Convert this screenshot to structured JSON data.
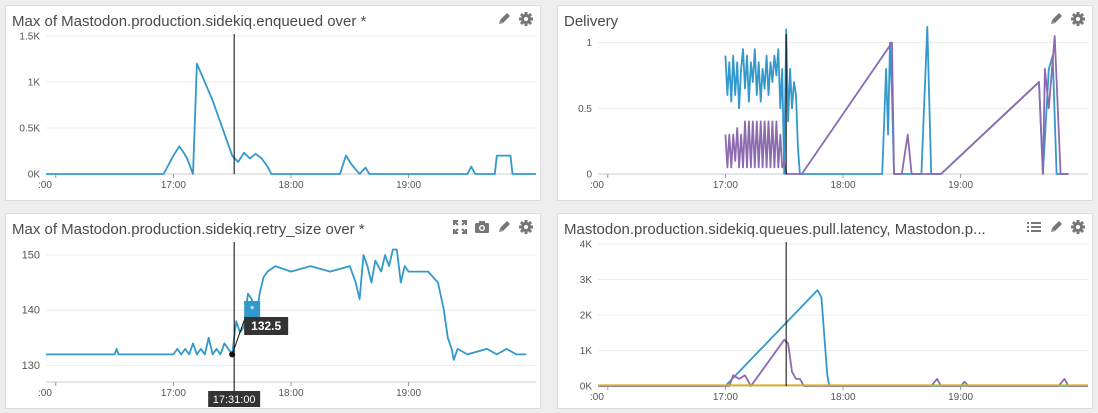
{
  "colors": {
    "blue": "#3399cc",
    "purple": "#8c6bb1",
    "gold": "#d4b21f",
    "grid": "#ececec",
    "cursor": "#000000"
  },
  "panels": [
    {
      "title": "Max of Mastodon.production.sidekiq.enqueued over *",
      "icons": [
        "pencil-icon",
        "gear-icon"
      ]
    },
    {
      "title": "Delivery",
      "icons": [
        "pencil-icon",
        "gear-icon"
      ]
    },
    {
      "title": "Max of Mastodon.production.sidekiq.retry_size over *",
      "icons": [
        "expand-icon",
        "camera-icon",
        "pencil-icon",
        "gear-icon"
      ],
      "tooltip": {
        "series_marker": "*",
        "value": "132.5",
        "time": "17:31:00"
      }
    },
    {
      "title": "Mastodon.production.sidekiq.queues.pull.latency, Mastodon.p...",
      "icons": [
        "list-icon",
        "pencil-icon",
        "gear-icon"
      ]
    }
  ],
  "chart_data": [
    {
      "type": "line",
      "x_ticks": [
        "16:00",
        "17:00",
        "18:00",
        "19:00"
      ],
      "x_tick_labels": [
        ":00",
        "17:00",
        "18:00",
        "19:00"
      ],
      "ylim": [
        0,
        1500
      ],
      "y_ticks": [
        0,
        500,
        1000,
        1500
      ],
      "y_tick_labels": [
        "0K",
        "0.5K",
        "1K",
        "1.5K"
      ],
      "grid": true,
      "cursor_time": "17:31",
      "series": [
        {
          "color": "blue",
          "points": [
            [
              "15:55",
              0
            ],
            [
              "16:55",
              0
            ],
            [
              "17:00",
              200
            ],
            [
              "17:03",
              300
            ],
            [
              "17:05",
              240
            ],
            [
              "17:07",
              170
            ],
            [
              "17:10",
              0
            ],
            [
              "17:12",
              1200
            ],
            [
              "17:15",
              1050
            ],
            [
              "17:20",
              800
            ],
            [
              "17:30",
              200
            ],
            [
              "17:33",
              130
            ],
            [
              "17:36",
              230
            ],
            [
              "17:39",
              170
            ],
            [
              "17:42",
              220
            ],
            [
              "17:45",
              170
            ],
            [
              "17:48",
              80
            ],
            [
              "17:50",
              0
            ],
            [
              "18:25",
              0
            ],
            [
              "18:28",
              200
            ],
            [
              "18:31",
              100
            ],
            [
              "18:35",
              0
            ],
            [
              "18:38",
              70
            ],
            [
              "18:40",
              0
            ],
            [
              "19:30",
              0
            ],
            [
              "19:32",
              80
            ],
            [
              "19:34",
              0
            ],
            [
              "19:44",
              0
            ],
            [
              "19:45",
              200
            ],
            [
              "19:52",
              200
            ],
            [
              "19:53",
              0
            ],
            [
              "20:05",
              0
            ]
          ]
        }
      ]
    },
    {
      "type": "line",
      "x_ticks": [
        "16:00",
        "17:00",
        "18:00",
        "19:00"
      ],
      "x_tick_labels": [
        ":00",
        "17:00",
        "18:00",
        "19:00"
      ],
      "ylim": [
        0,
        1.05
      ],
      "y_ticks": [
        0,
        0.5,
        1
      ],
      "y_tick_labels": [
        "0",
        "0.5",
        "1"
      ],
      "grid": true,
      "cursor_time": "17:31",
      "series": [
        {
          "color": "blue",
          "points": [
            [
              "17:00",
              0.9
            ],
            [
              "17:01",
              0.6
            ],
            [
              "17:02",
              0.85
            ],
            [
              "17:03",
              0.55
            ],
            [
              "17:04",
              0.9
            ],
            [
              "17:05",
              0.6
            ],
            [
              "17:06",
              0.85
            ],
            [
              "17:07",
              0.5
            ],
            [
              "17:08",
              0.8
            ],
            [
              "17:09",
              0.95
            ],
            [
              "17:10",
              0.65
            ],
            [
              "17:11",
              0.9
            ],
            [
              "17:12",
              0.55
            ],
            [
              "17:13",
              0.85
            ],
            [
              "17:14",
              0.7
            ],
            [
              "17:15",
              0.95
            ],
            [
              "17:16",
              0.6
            ],
            [
              "17:17",
              0.85
            ],
            [
              "17:18",
              0.55
            ],
            [
              "17:19",
              0.8
            ],
            [
              "17:20",
              0.65
            ],
            [
              "17:21",
              0.9
            ],
            [
              "17:22",
              0.6
            ],
            [
              "17:23",
              0.85
            ],
            [
              "17:24",
              0.7
            ],
            [
              "17:25",
              0.9
            ],
            [
              "17:26",
              0.75
            ],
            [
              "17:27",
              0.95
            ],
            [
              "17:28",
              0.5
            ],
            [
              "17:29",
              0.8
            ],
            [
              "17:30",
              0.0
            ],
            [
              "17:31",
              1.1
            ],
            [
              "17:32",
              0.4
            ],
            [
              "17:33",
              0.8
            ],
            [
              "17:34",
              0.5
            ],
            [
              "17:35",
              0.7
            ],
            [
              "17:36",
              0.6
            ],
            [
              "17:37",
              0.2
            ],
            [
              "17:38",
              0.0
            ],
            [
              "17:39",
              0.0
            ],
            [
              "18:20",
              0.0
            ],
            [
              "18:22",
              0.8
            ],
            [
              "18:23",
              0.3
            ],
            [
              "18:24",
              1.0
            ],
            [
              "18:25",
              0.6
            ],
            [
              "18:26",
              0.0
            ],
            [
              "18:40",
              0.0
            ],
            [
              "18:43",
              1.12
            ],
            [
              "18:45",
              0.0
            ],
            [
              "18:50",
              0.0
            ],
            [
              "19:40",
              0.7
            ],
            [
              "19:42",
              0.0
            ],
            [
              "19:45",
              0.8
            ],
            [
              "19:47",
              0.9
            ],
            [
              "19:49",
              0.0
            ],
            [
              "19:55",
              0.0
            ]
          ]
        },
        {
          "color": "purple",
          "points": [
            [
              "17:00",
              0.3
            ],
            [
              "17:01",
              0.05
            ],
            [
              "17:02",
              0.3
            ],
            [
              "17:03",
              0.05
            ],
            [
              "17:04",
              0.3
            ],
            [
              "17:05",
              0.1
            ],
            [
              "17:06",
              0.35
            ],
            [
              "17:07",
              0.05
            ],
            [
              "17:08",
              0.3
            ],
            [
              "17:09",
              0.05
            ],
            [
              "17:10",
              0.4
            ],
            [
              "17:11",
              0.05
            ],
            [
              "17:12",
              0.4
            ],
            [
              "17:13",
              0.05
            ],
            [
              "17:14",
              0.4
            ],
            [
              "17:15",
              0.05
            ],
            [
              "17:16",
              0.4
            ],
            [
              "17:17",
              0.05
            ],
            [
              "17:18",
              0.4
            ],
            [
              "17:19",
              0.05
            ],
            [
              "17:20",
              0.4
            ],
            [
              "17:21",
              0.05
            ],
            [
              "17:22",
              0.4
            ],
            [
              "17:23",
              0.05
            ],
            [
              "17:24",
              0.4
            ],
            [
              "17:25",
              0.05
            ],
            [
              "17:26",
              0.4
            ],
            [
              "17:27",
              0.05
            ],
            [
              "17:28",
              0.3
            ],
            [
              "17:29",
              0.05
            ],
            [
              "17:30",
              0.1
            ],
            [
              "17:31",
              0.0
            ],
            [
              "17:39",
              0.0
            ],
            [
              "18:25",
              1.0
            ],
            [
              "18:26",
              0.0
            ],
            [
              "18:30",
              0.0
            ],
            [
              "18:33",
              0.3
            ],
            [
              "18:35",
              0.0
            ],
            [
              "18:50",
              0.0
            ],
            [
              "19:40",
              0.7
            ],
            [
              "19:42",
              0.0
            ],
            [
              "19:43",
              0.8
            ],
            [
              "19:45",
              0.5
            ],
            [
              "19:48",
              1.05
            ],
            [
              "19:51",
              0.0
            ],
            [
              "19:55",
              0.0
            ]
          ]
        }
      ]
    },
    {
      "type": "line",
      "x_ticks": [
        "16:00",
        "17:00",
        "18:00",
        "19:00"
      ],
      "x_tick_labels": [
        ":00",
        "17:00",
        "18:00",
        "19:00"
      ],
      "ylim": [
        127,
        152
      ],
      "y_ticks": [
        130,
        140,
        150
      ],
      "y_tick_labels": [
        "130",
        "140",
        "150"
      ],
      "grid": true,
      "cursor_time": "17:31",
      "series": [
        {
          "color": "blue",
          "points": [
            [
              "15:55",
              132
            ],
            [
              "16:30",
              132
            ],
            [
              "16:31",
              133
            ],
            [
              "16:32",
              132
            ],
            [
              "17:00",
              132
            ],
            [
              "17:02",
              133
            ],
            [
              "17:04",
              132
            ],
            [
              "17:06",
              133
            ],
            [
              "17:08",
              132
            ],
            [
              "17:10",
              134
            ],
            [
              "17:12",
              132
            ],
            [
              "17:14",
              133
            ],
            [
              "17:16",
              132
            ],
            [
              "17:18",
              135
            ],
            [
              "17:20",
              132
            ],
            [
              "17:22",
              133
            ],
            [
              "17:24",
              132
            ],
            [
              "17:26",
              134
            ],
            [
              "17:28",
              133
            ],
            [
              "17:30",
              132
            ],
            [
              "17:32",
              138
            ],
            [
              "17:34",
              136
            ],
            [
              "17:36",
              137
            ],
            [
              "17:38",
              143
            ],
            [
              "17:40",
              142
            ],
            [
              "17:42",
              138
            ],
            [
              "17:44",
              143
            ],
            [
              "17:46",
              146
            ],
            [
              "17:48",
              147
            ],
            [
              "17:52",
              148
            ],
            [
              "18:00",
              147
            ],
            [
              "18:10",
              148
            ],
            [
              "18:20",
              147
            ],
            [
              "18:30",
              148
            ],
            [
              "18:33",
              145
            ],
            [
              "18:35",
              142
            ],
            [
              "18:37",
              150
            ],
            [
              "18:39",
              148
            ],
            [
              "18:41",
              145
            ],
            [
              "18:43",
              149
            ],
            [
              "18:46",
              147
            ],
            [
              "18:48",
              150
            ],
            [
              "18:50",
              148
            ],
            [
              "18:52",
              151
            ],
            [
              "18:54",
              151
            ],
            [
              "18:56",
              145
            ],
            [
              "18:58",
              148
            ],
            [
              "19:00",
              147
            ],
            [
              "19:10",
              147
            ],
            [
              "19:15",
              145
            ],
            [
              "19:18",
              140
            ],
            [
              "19:20",
              135
            ],
            [
              "19:22",
              133
            ],
            [
              "19:23",
              131
            ],
            [
              "19:25",
              133
            ],
            [
              "19:30",
              132
            ],
            [
              "19:40",
              133
            ],
            [
              "19:45",
              132
            ],
            [
              "19:50",
              133
            ],
            [
              "19:55",
              132
            ],
            [
              "20:00",
              132
            ]
          ]
        }
      ]
    },
    {
      "type": "line",
      "x_ticks": [
        "16:00",
        "17:00",
        "18:00",
        "19:00"
      ],
      "x_tick_labels": [
        ":00",
        "17:00",
        "18:00",
        "19:00"
      ],
      "ylim": [
        0,
        4000
      ],
      "y_ticks": [
        0,
        1000,
        2000,
        3000,
        4000
      ],
      "y_tick_labels": [
        "0K",
        "1K",
        "2K",
        "3K",
        "4K"
      ],
      "grid": true,
      "cursor_time": "17:31",
      "series": [
        {
          "color": "blue",
          "points": [
            [
              "15:55",
              0
            ],
            [
              "17:00",
              0
            ],
            [
              "17:47",
              2700
            ],
            [
              "17:49",
              2500
            ],
            [
              "17:52",
              300
            ],
            [
              "17:53",
              0
            ],
            [
              "20:05",
              0
            ]
          ]
        },
        {
          "color": "purple",
          "points": [
            [
              "15:55",
              0
            ],
            [
              "17:02",
              0
            ],
            [
              "17:04",
              300
            ],
            [
              "17:07",
              200
            ],
            [
              "17:10",
              300
            ],
            [
              "17:13",
              0
            ],
            [
              "17:15",
              150
            ],
            [
              "17:30",
              1300
            ],
            [
              "17:32",
              1200
            ],
            [
              "17:34",
              400
            ],
            [
              "17:36",
              200
            ],
            [
              "17:38",
              200
            ],
            [
              "17:40",
              0
            ],
            [
              "18:45",
              0
            ],
            [
              "18:48",
              200
            ],
            [
              "18:50",
              0
            ],
            [
              "19:00",
              0
            ],
            [
              "19:02",
              120
            ],
            [
              "19:04",
              0
            ],
            [
              "19:50",
              0
            ],
            [
              "19:53",
              200
            ],
            [
              "19:55",
              0
            ],
            [
              "20:05",
              0
            ]
          ]
        },
        {
          "color": "gold",
          "points": [
            [
              "15:55",
              20
            ],
            [
              "20:05",
              20
            ]
          ]
        }
      ]
    }
  ]
}
